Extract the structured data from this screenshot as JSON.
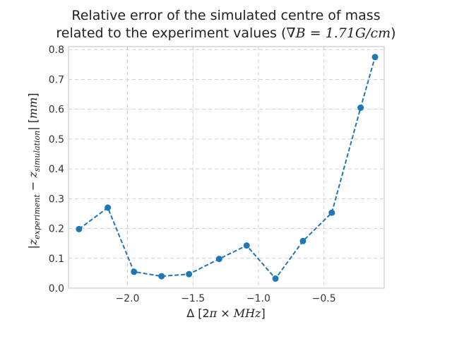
{
  "chart_data": {
    "type": "line",
    "title": {
      "line1": "Relative error of the simulated centre of mass",
      "line2_prefix": "related to the experiment values (",
      "line2_math": "∇B = 1.71G/cm",
      "line2_suffix": ")"
    },
    "xlabel": {
      "prefix": "Δ [2",
      "pi": "π",
      "middle": " × ",
      "unit": "MHz",
      "suffix": "]"
    },
    "ylabel": {
      "open": "|",
      "z1": "z",
      "sub1": "experiment",
      "minus": " − ",
      "z2": "z",
      "sub2": "simulation",
      "close": "| [",
      "unit": "mm",
      "end": "]"
    },
    "x": [
      -2.37,
      -2.15,
      -1.95,
      -1.74,
      -1.53,
      -1.3,
      -1.09,
      -0.87,
      -0.66,
      -0.44,
      -0.22,
      -0.11
    ],
    "y": [
      0.198,
      0.27,
      0.055,
      0.04,
      0.047,
      0.098,
      0.143,
      0.032,
      0.158,
      0.253,
      0.605,
      0.775
    ],
    "xlim": [
      -2.45,
      -0.04
    ],
    "ylim": [
      0,
      0.81
    ],
    "xticks": [
      -2.0,
      -1.5,
      -1.0,
      -0.5
    ],
    "xtick_labels": [
      "−2.0",
      "−1.5",
      "−1.0",
      "−0.5"
    ],
    "yticks": [
      0.0,
      0.1,
      0.2,
      0.3,
      0.4,
      0.5,
      0.6,
      0.7,
      0.8
    ],
    "ytick_labels": [
      "0.0",
      "0.1",
      "0.2",
      "0.3",
      "0.4",
      "0.5",
      "0.6",
      "0.7",
      "0.8"
    ],
    "grid": true,
    "colors": {
      "series": "#1f77b4",
      "grid": "#cfcfcf",
      "frame": "#cccccc"
    }
  }
}
